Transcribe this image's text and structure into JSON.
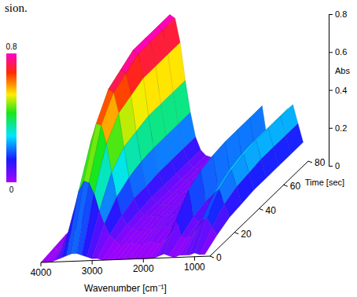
{
  "chart_data": {
    "type": "surface",
    "annotations": [
      "sion."
    ],
    "x_label": "Wavenumber [cm⁻¹]",
    "y_label": "Time [sec]",
    "z_label": "Abs",
    "x": [
      4000,
      3900,
      3800,
      3700,
      3600,
      3500,
      3400,
      3300,
      3200,
      3100,
      3000,
      2900,
      2800,
      2700,
      2600,
      2500,
      2400,
      2300,
      2200,
      2100,
      2000,
      1900,
      1800,
      1700,
      1600,
      1500,
      1400,
      1300,
      1200,
      1100,
      1000,
      900,
      800
    ],
    "y": [
      0,
      10,
      20,
      30,
      40,
      50,
      60,
      70,
      80
    ],
    "values": [
      [
        0,
        0,
        0,
        0.01,
        0.02,
        0.03,
        0.04,
        0.04,
        0.03,
        0.02,
        0.01,
        0.01,
        0,
        0,
        0,
        0,
        0,
        0,
        0,
        0,
        0,
        0,
        0,
        0.01,
        0.02,
        0.01,
        0,
        0.01,
        0.01,
        0.01,
        0.02,
        0.01,
        0.01
      ],
      [
        0.01,
        0.01,
        0.03,
        0.09,
        0.2,
        0.31,
        0.36,
        0.35,
        0.29,
        0.2,
        0.13,
        0.07,
        0.04,
        0.02,
        0.02,
        0.02,
        0.02,
        0.02,
        0.02,
        0.03,
        0.02,
        0.02,
        0.04,
        0.08,
        0.14,
        0.05,
        0.04,
        0.05,
        0.08,
        0.13,
        0.14,
        0.09,
        0.05
      ],
      [
        0.02,
        0.02,
        0.05,
        0.15,
        0.34,
        0.51,
        0.6,
        0.59,
        0.49,
        0.34,
        0.21,
        0.11,
        0.06,
        0.04,
        0.03,
        0.03,
        0.03,
        0.03,
        0.04,
        0.05,
        0.04,
        0.04,
        0.06,
        0.14,
        0.23,
        0.09,
        0.06,
        0.08,
        0.14,
        0.21,
        0.23,
        0.15,
        0.08
      ],
      [
        0.02,
        0.03,
        0.05,
        0.18,
        0.41,
        0.61,
        0.72,
        0.7,
        0.59,
        0.41,
        0.25,
        0.14,
        0.07,
        0.05,
        0.04,
        0.04,
        0.04,
        0.04,
        0.05,
        0.05,
        0.05,
        0.05,
        0.07,
        0.16,
        0.27,
        0.11,
        0.07,
        0.09,
        0.16,
        0.25,
        0.27,
        0.18,
        0.09
      ],
      [
        0.02,
        0.03,
        0.06,
        0.19,
        0.43,
        0.65,
        0.76,
        0.74,
        0.62,
        0.43,
        0.27,
        0.14,
        0.08,
        0.05,
        0.04,
        0.04,
        0.04,
        0.04,
        0.05,
        0.06,
        0.05,
        0.05,
        0.08,
        0.17,
        0.29,
        0.11,
        0.08,
        0.1,
        0.17,
        0.27,
        0.29,
        0.19,
        0.1
      ],
      [
        0.02,
        0.03,
        0.06,
        0.2,
        0.45,
        0.68,
        0.8,
        0.78,
        0.65,
        0.45,
        0.28,
        0.15,
        0.08,
        0.05,
        0.04,
        0.04,
        0.04,
        0.04,
        0.05,
        0.06,
        0.05,
        0.05,
        0.08,
        0.18,
        0.3,
        0.12,
        0.08,
        0.1,
        0.18,
        0.28,
        0.3,
        0.2,
        0.1
      ],
      [
        0.02,
        0.03,
        0.06,
        0.2,
        0.45,
        0.68,
        0.8,
        0.78,
        0.65,
        0.45,
        0.28,
        0.15,
        0.08,
        0.05,
        0.04,
        0.04,
        0.04,
        0.04,
        0.05,
        0.06,
        0.05,
        0.05,
        0.08,
        0.18,
        0.3,
        0.12,
        0.08,
        0.1,
        0.18,
        0.28,
        0.3,
        0.2,
        0.1
      ],
      [
        0.02,
        0.03,
        0.06,
        0.2,
        0.45,
        0.68,
        0.8,
        0.78,
        0.65,
        0.45,
        0.28,
        0.15,
        0.08,
        0.05,
        0.04,
        0.04,
        0.04,
        0.04,
        0.05,
        0.06,
        0.05,
        0.05,
        0.08,
        0.18,
        0.3,
        0.12,
        0.08,
        0.1,
        0.18,
        0.28,
        0.3,
        0.2,
        0.1
      ],
      [
        0.02,
        0.03,
        0.06,
        0.2,
        0.45,
        0.68,
        0.8,
        0.78,
        0.65,
        0.45,
        0.28,
        0.15,
        0.08,
        0.05,
        0.04,
        0.04,
        0.04,
        0.04,
        0.05,
        0.06,
        0.05,
        0.05,
        0.08,
        0.18,
        0.3,
        0.12,
        0.08,
        0.1,
        0.18,
        0.28,
        0.3,
        0.2,
        0.1
      ]
    ],
    "xlim": [
      4000,
      700
    ],
    "xticks": [
      4000,
      3000,
      2000,
      1000
    ],
    "ylim": [
      0,
      80
    ],
    "yticks": [
      0,
      20,
      40,
      60,
      80
    ],
    "zlim": [
      0,
      0.8
    ],
    "zticks": [
      0,
      0.2,
      0.4,
      0.6,
      0.8
    ],
    "colorbar": {
      "range": [
        0,
        0.8
      ],
      "ticks": [
        0,
        0.8
      ]
    }
  }
}
